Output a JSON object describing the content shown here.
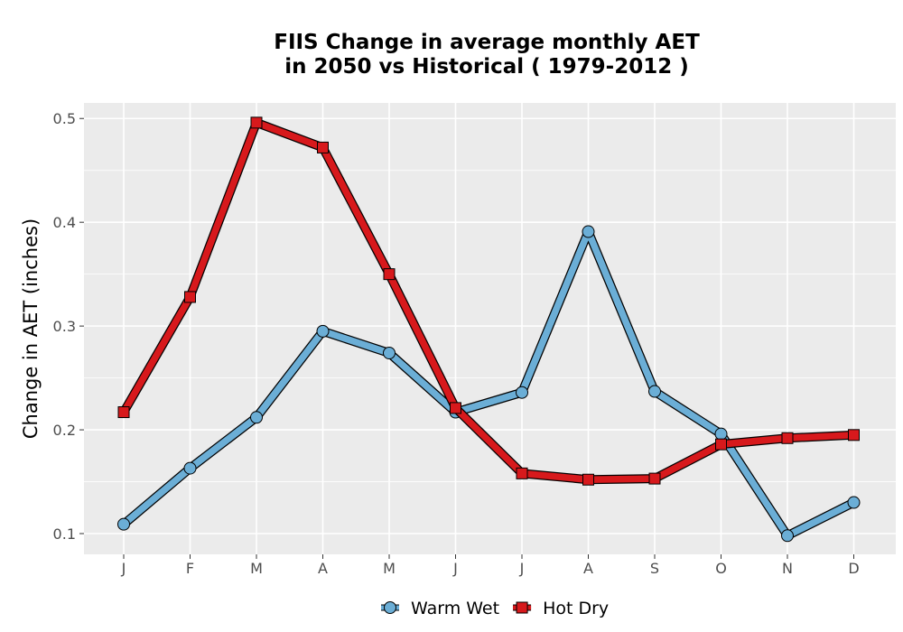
{
  "chart_data": {
    "type": "line",
    "title_line1": "FIIS  Change in average monthly AET",
    "title_line2": "in 2050 vs Historical ( 1979-2012 )",
    "xlabel": "",
    "ylabel": "Change in AET (inches)",
    "categories": [
      "J",
      "F",
      "M",
      "A",
      "M",
      "J",
      "J",
      "A",
      "S",
      "O",
      "N",
      "D"
    ],
    "ylim": [
      0.08,
      0.515
    ],
    "yticks": [
      0.1,
      0.2,
      0.3,
      0.4,
      0.5
    ],
    "ytick_labels": [
      "0.1",
      "0.2",
      "0.3",
      "0.4",
      "0.5"
    ],
    "grid": true,
    "legend_position": "bottom",
    "series": [
      {
        "name": "Warm Wet",
        "marker": "circle",
        "color": "#6baed6",
        "values": [
          0.109,
          0.163,
          0.212,
          0.295,
          0.274,
          0.217,
          0.236,
          0.391,
          0.237,
          0.196,
          0.098,
          0.13
        ]
      },
      {
        "name": "Hot Dry",
        "marker": "square",
        "color": "#d7191c",
        "values": [
          0.217,
          0.328,
          0.496,
          0.472,
          0.35,
          0.221,
          0.158,
          0.152,
          0.153,
          0.186,
          0.192,
          0.195
        ]
      }
    ]
  }
}
